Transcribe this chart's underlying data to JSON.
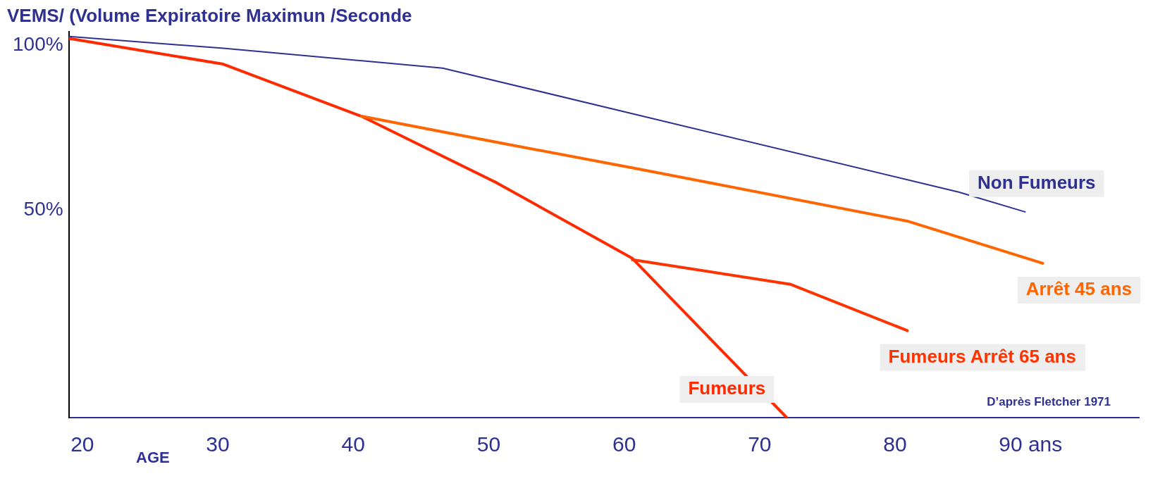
{
  "chart_data": {
    "type": "line",
    "title": "VEMS/ (Volume Expiratoire Maximun /Seconde",
    "xlabel": "AGE",
    "xlim": [
      19,
      98
    ],
    "xticks": [
      20,
      30,
      40,
      50,
      60,
      70,
      80,
      {
        "value": 90,
        "label": "90 ans"
      }
    ],
    "ylim": [
      -13,
      104
    ],
    "yticks": [
      {
        "value": 100,
        "label": "100%"
      },
      {
        "value": 50,
        "label": "50%"
      }
    ],
    "grid": false,
    "legend": false,
    "marker": "none",
    "line_style": "solid",
    "series": [
      {
        "name": "Non Fumeurs",
        "color": "#2e3192",
        "x": [
          19,
          30.4,
          46.6,
          84.7,
          89.6
        ],
        "values": [
          102.6,
          99,
          93,
          55.4,
          49.4
        ]
      },
      {
        "name": "Arrêt 45 ans",
        "color": "#ff6600",
        "x": [
          40.6,
          50.6,
          61.2,
          80.9,
          90.9
        ],
        "values": [
          78.4,
          70.5,
          62.3,
          46.6,
          33.8
        ]
      },
      {
        "name": "Fumeurs Arrêt 65 ans",
        "color": "#ff3300",
        "x": [
          60.6,
          72.3,
          80.9
        ],
        "values": [
          34.9,
          27.4,
          13.4
        ]
      },
      {
        "name": "Fumeurs",
        "color": "#ff2a00",
        "x": [
          19,
          30.4,
          40.6,
          50.6,
          60.6,
          72
        ],
        "values": [
          102,
          94.2,
          78.4,
          58.2,
          35.3,
          -13
        ]
      }
    ],
    "annotations": [
      "D’après Fletcher 1971"
    ]
  }
}
